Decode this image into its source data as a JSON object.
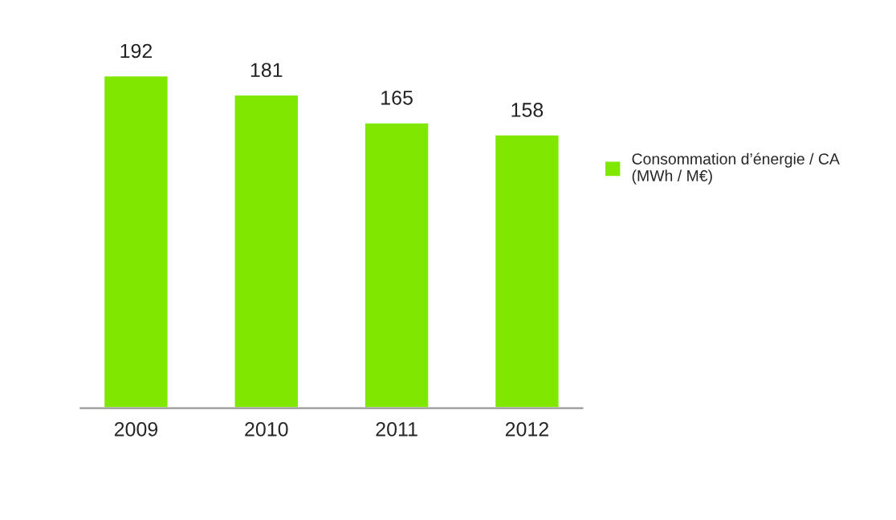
{
  "chart_data": {
    "type": "bar",
    "categories": [
      "2009",
      "2010",
      "2011",
      "2012"
    ],
    "series": [
      {
        "name": "Consommation d’énergie / CA\n(MWh / M€)",
        "color": "#80e800",
        "values": [
          192,
          181,
          165,
          158
        ]
      }
    ],
    "data_labels": true,
    "legend": "right",
    "grid": false
  }
}
